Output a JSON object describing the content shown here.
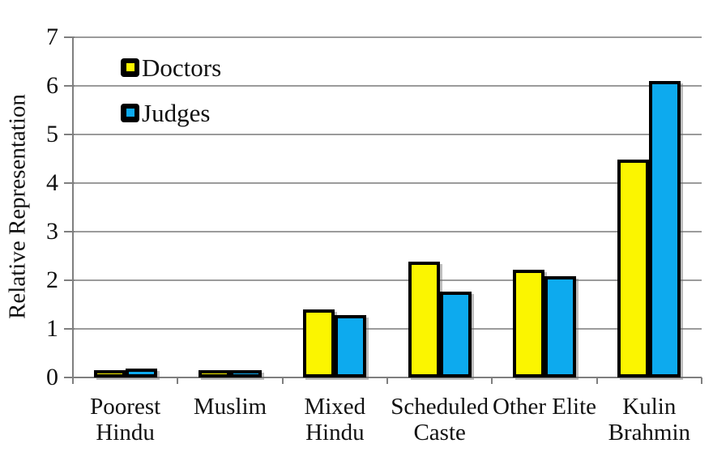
{
  "chart_data": {
    "type": "bar",
    "title": "",
    "xlabel": "",
    "ylabel": "Relative Representation",
    "ylim": [
      0,
      7
    ],
    "yticks": [
      0,
      1,
      2,
      3,
      4,
      5,
      6,
      7
    ],
    "grid": "horizontal gridlines on",
    "legend_position": "inside top-left",
    "categories": [
      "Poorest Hindu",
      "Muslim",
      "Mixed Hindu",
      "Scheduled Caste",
      "Other Elite",
      "Kulin Brahmin"
    ],
    "category_label_lines": [
      [
        "Poorest",
        "Hindu"
      ],
      [
        "Muslim"
      ],
      [
        "Mixed",
        "Hindu"
      ],
      [
        "Scheduled",
        "Caste"
      ],
      [
        "Other Elite"
      ],
      [
        "Kulin",
        "Brahmin"
      ]
    ],
    "series": [
      {
        "name": "Doctors",
        "color": "#FBF500",
        "values": [
          0.07,
          0.12,
          1.4,
          2.38,
          2.22,
          4.48
        ]
      },
      {
        "name": "Judges",
        "color": "#0DAAEE",
        "values": [
          0.18,
          0.14,
          1.28,
          1.77,
          2.08,
          6.1
        ]
      }
    ],
    "colors": {
      "bar_border": "#000000",
      "gridline": "#9b9b9b",
      "axis": "#7f7f7f",
      "text": "#111111",
      "background": "#ffffff"
    }
  }
}
